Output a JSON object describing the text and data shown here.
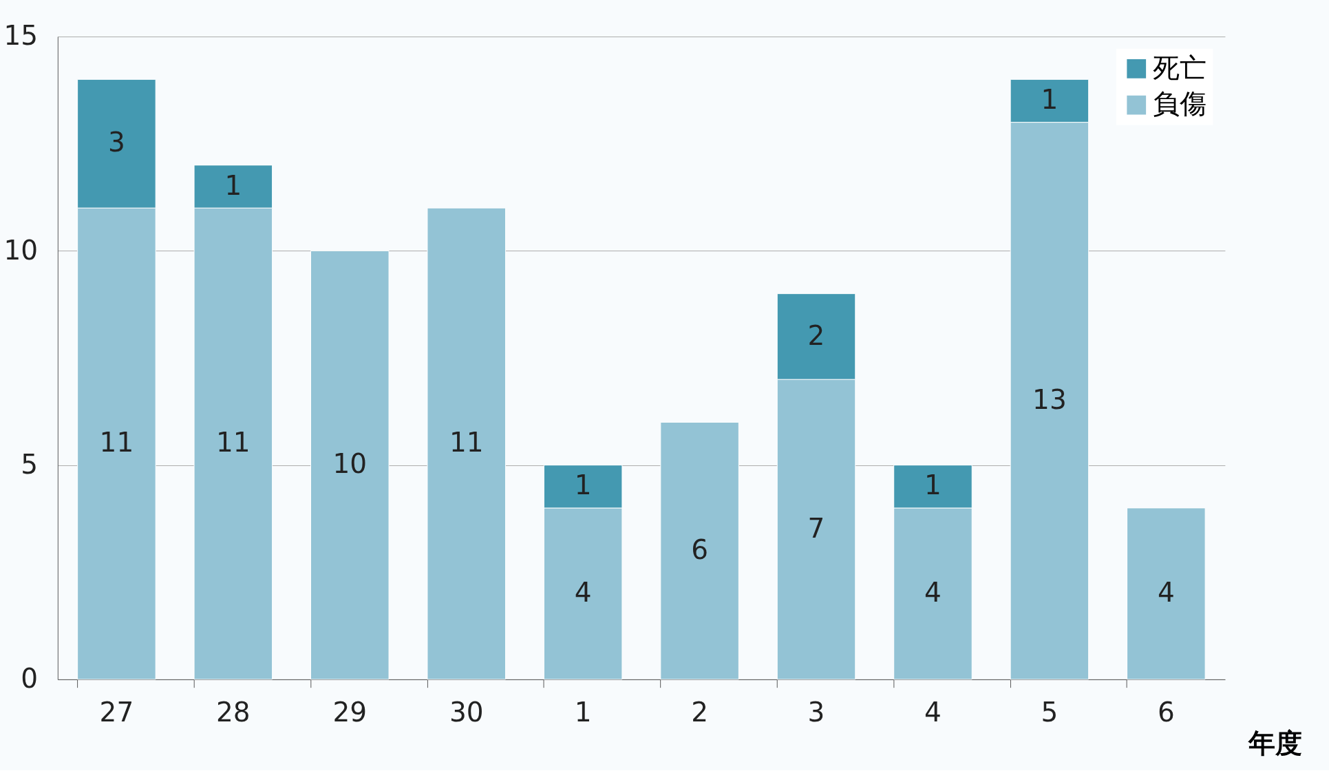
{
  "chart_data": {
    "type": "bar",
    "stacked": true,
    "xlabel": "年度",
    "categories": [
      "27",
      "28",
      "29",
      "30",
      "1",
      "2",
      "3",
      "4",
      "5",
      "6"
    ],
    "series": [
      {
        "name": "負傷",
        "color": "#93c3d5",
        "values": [
          11,
          11,
          10,
          11,
          4,
          6,
          7,
          4,
          13,
          4
        ]
      },
      {
        "name": "死亡",
        "color": "#4499b1",
        "values": [
          3,
          1,
          null,
          null,
          1,
          null,
          2,
          1,
          1,
          null
        ]
      }
    ],
    "ylim": [
      0,
      15
    ],
    "yticks": [
      0,
      5,
      10,
      15
    ],
    "grid": "y",
    "legend": "top right",
    "data_labels": true
  }
}
